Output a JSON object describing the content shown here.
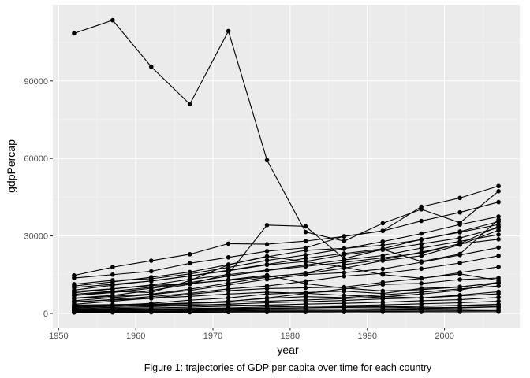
{
  "chart_data": {
    "type": "line",
    "xlabel": "year",
    "ylabel": "gdpPercap",
    "caption": "Figure 1: trajectories of GDP per capita over time for each country",
    "xlim": [
      1949.25,
      2009.75
    ],
    "ylim": [
      -5500,
      119500
    ],
    "x_ticks": [
      1950,
      1960,
      1970,
      1980,
      1990,
      2000
    ],
    "x_tick_labels": [
      "1950",
      "1960",
      "1970",
      "1980",
      "1990",
      "2000"
    ],
    "y_ticks": [
      0,
      30000,
      60000,
      90000
    ],
    "y_tick_labels": [
      "0",
      "30000",
      "60000",
      "90000"
    ],
    "grid": true,
    "legend": "none",
    "x": [
      1952,
      1957,
      1962,
      1967,
      1972,
      1977,
      1982,
      1987,
      1992,
      1997,
      2002,
      2007
    ],
    "series": [
      {
        "values": [
          108400,
          113500,
          95500,
          81000,
          109300,
          59300,
          31500,
          28000,
          34900,
          40300,
          35100,
          47300
        ]
      },
      {
        "values": [
          14700,
          17900,
          20400,
          22900,
          27000,
          26800,
          28000,
          29800,
          31900,
          35800,
          39100,
          43100
        ]
      },
      {
        "values": [
          13700,
          15000,
          16300,
          19400,
          21700,
          24100,
          25400,
          29900,
          32000,
          41300,
          44700,
          49300
        ]
      },
      {
        "values": [
          11300,
          12800,
          13400,
          15300,
          17800,
          20500,
          22600,
          25000,
          27800,
          30900,
          34400,
          37500
        ]
      },
      {
        "values": [
          10600,
          12200,
          14000,
          16000,
          18900,
          21900,
          24400,
          25200,
          26400,
          28500,
          31700,
          35500
        ]
      },
      {
        "values": [
          10000,
          11300,
          12500,
          14500,
          16700,
          19000,
          21300,
          23200,
          25000,
          28700,
          31400,
          34400
        ]
      },
      {
        "values": [
          9000,
          10900,
          12600,
          14500,
          16500,
          18800,
          20100,
          22700,
          24600,
          26900,
          29200,
          33200
        ]
      },
      {
        "values": [
          8500,
          9500,
          11000,
          13200,
          15000,
          16800,
          18700,
          20700,
          22400,
          25300,
          27900,
          30500
        ]
      },
      {
        "values": [
          7400,
          8600,
          10100,
          11900,
          14500,
          16600,
          18200,
          19800,
          21500,
          23300,
          27000,
          33700
        ]
      },
      {
        "values": [
          6900,
          8100,
          9700,
          11600,
          12800,
          14300,
          15400,
          17500,
          20400,
          22300,
          26600,
          32200
        ]
      },
      {
        "values": [
          5800,
          6600,
          7500,
          9400,
          11700,
          14000,
          15600,
          18900,
          20800,
          23700,
          26900,
          28700
        ]
      },
      {
        "values": [
          4900,
          6100,
          7300,
          8900,
          11000,
          13200,
          15000,
          15800,
          17200,
          19800,
          22600,
          25500
        ]
      },
      {
        "values": [
          4300,
          5400,
          6500,
          7800,
          9500,
          10600,
          12400,
          14400,
          15500,
          17300,
          19500,
          22300
        ]
      },
      {
        "values": [
          3500,
          4700,
          5900,
          7400,
          8800,
          9600,
          9900,
          10200,
          12000,
          13500,
          15800,
          18000
        ]
      },
      {
        "values": [
          5900,
          7000,
          8900,
          11300,
          15300,
          34200,
          33700,
          21200,
          24800,
          20100,
          23000,
          36300
        ]
      },
      {
        "values": [
          6900,
          8500,
          8100,
          12700,
          18800,
          22100,
          20000,
          17900,
          15000,
          13600,
          15300,
          12800
        ]
      },
      {
        "values": [
          3000,
          3200,
          3500,
          4000,
          4600,
          6000,
          7700,
          9500,
          11200,
          11600,
          13100,
          13700
        ]
      },
      {
        "values": [
          2700,
          3100,
          3900,
          5100,
          6000,
          7500,
          8100,
          8600,
          7700,
          9700,
          10300,
          11800
        ]
      },
      {
        "values": [
          2300,
          2700,
          3300,
          3900,
          4700,
          5800,
          6500,
          6100,
          7200,
          8200,
          9500,
          10600
        ]
      },
      {
        "values": [
          2000,
          2300,
          2600,
          3100,
          3600,
          4100,
          4500,
          5000,
          5600,
          6000,
          7100,
          8400
        ]
      },
      {
        "values": [
          1700,
          1900,
          2100,
          2400,
          2800,
          3200,
          3600,
          3900,
          4300,
          4900,
          5300,
          6200
        ]
      },
      {
        "values": [
          1400,
          1500,
          1700,
          1900,
          2100,
          2500,
          2700,
          3000,
          3300,
          3700,
          4100,
          4700
        ]
      },
      {
        "values": [
          1100,
          1200,
          1300,
          1400,
          1600,
          1900,
          2100,
          2300,
          2400,
          2700,
          3000,
          3400
        ]
      },
      {
        "values": [
          900,
          1000,
          1100,
          1200,
          1300,
          1500,
          1600,
          1700,
          1800,
          1900,
          2100,
          2500
        ]
      },
      {
        "values": [
          700,
          750,
          800,
          900,
          1000,
          1100,
          1150,
          1200,
          1300,
          1400,
          1500,
          1700
        ]
      },
      {
        "values": [
          500,
          550,
          600,
          650,
          700,
          750,
          800,
          850,
          900,
          950,
          1000,
          1100
        ]
      },
      {
        "values": [
          350,
          400,
          420,
          450,
          500,
          520,
          550,
          560,
          580,
          600,
          620,
          650
        ]
      },
      {
        "values": [
          2500,
          2800,
          3100,
          3400,
          3300,
          3000,
          2800,
          2600,
          2400,
          2200,
          2300,
          2600
        ]
      },
      {
        "values": [
          4500,
          5200,
          5800,
          6600,
          7500,
          8200,
          7800,
          7000,
          6500,
          6000,
          6800,
          7600
        ]
      },
      {
        "values": [
          8000,
          9500,
          10800,
          11500,
          13000,
          14800,
          11500,
          9800,
          8700,
          9200,
          10200,
          12000
        ]
      },
      {
        "values": [
          3200,
          3400,
          3600,
          3900,
          4300,
          4700,
          5200,
          5700,
          6400,
          7500,
          9000,
          11900
        ]
      },
      {
        "values": [
          1300,
          1450,
          1600,
          1750,
          1900,
          2050,
          2200,
          2400,
          2600,
          2800,
          3100,
          3500
        ]
      }
    ]
  }
}
